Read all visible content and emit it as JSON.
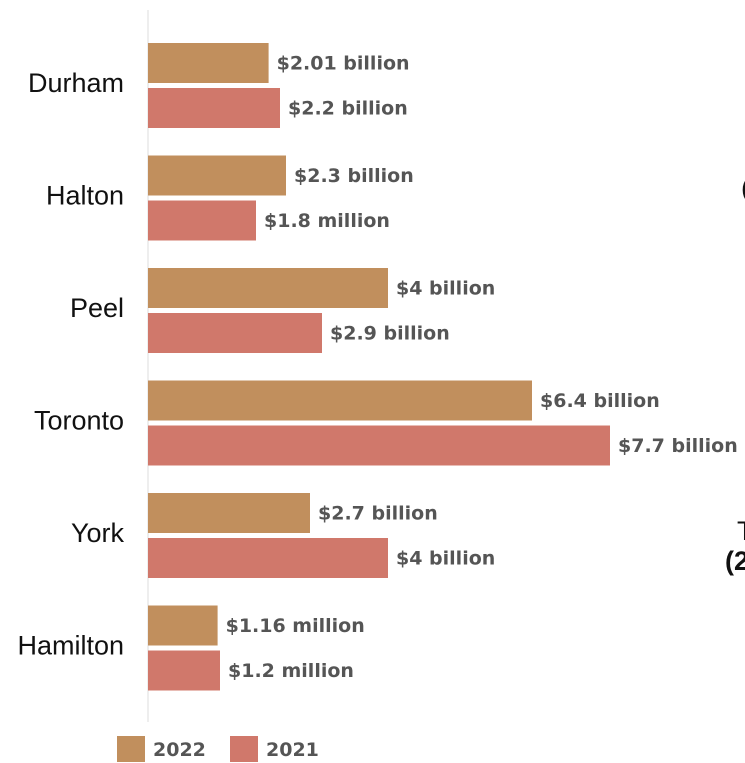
{
  "colors": {
    "y2022": "#c18f5d",
    "y2021": "#d0786b",
    "axis": "#dddddd"
  },
  "chart_data": {
    "type": "bar",
    "orientation": "horizontal",
    "categories": [
      "Durham",
      "Halton",
      "Peel",
      "Toronto",
      "York",
      "Hamilton"
    ],
    "series": [
      {
        "name": "2022",
        "values": [
          2.01,
          2.3,
          4,
          6.4,
          2.7,
          1.16
        ],
        "labels": [
          "$2.01 billion",
          "$2.3 billion",
          "$4 billion",
          "$6.4 billion",
          "$2.7 billion",
          "$1.16 million"
        ]
      },
      {
        "name": "2021",
        "values": [
          2.2,
          1.8,
          2.9,
          7.7,
          4,
          1.2
        ],
        "labels": [
          "$2.2 billion",
          "$1.8 million",
          "$2.9 billion",
          "$7.7 billion",
          "$4 billion",
          "$1.2 million"
        ]
      }
    ],
    "xlim": [
      0,
      7.7
    ],
    "grid": false,
    "legend_position": "bottom-left"
  },
  "side_text": {
    "fragment_1": "(",
    "fragment_2": "T",
    "fragment_3": "(2"
  }
}
